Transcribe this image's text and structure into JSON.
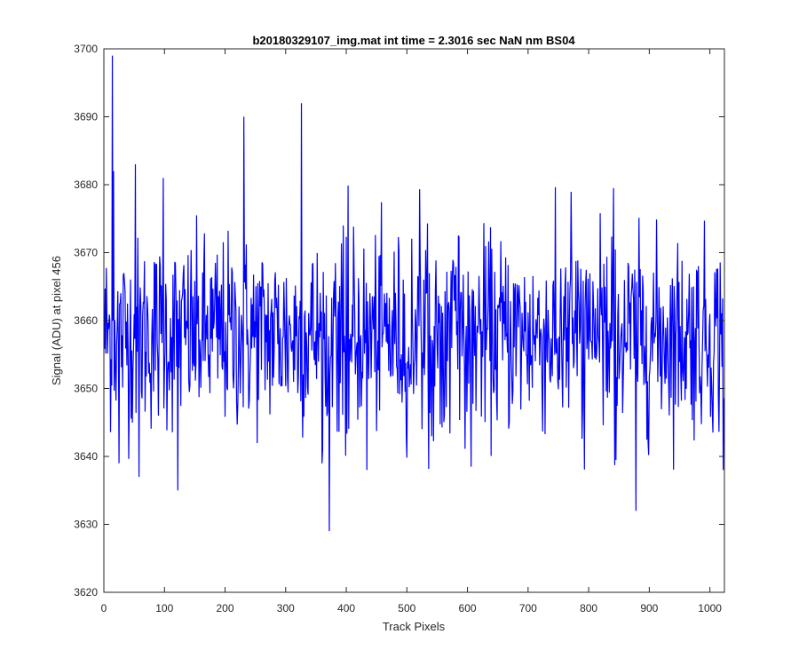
{
  "chart_data": {
    "type": "line",
    "title": "b20180329107_img.mat int time = 2.3016 sec  NaN nm BS04",
    "xlabel": "Track Pixels",
    "ylabel": "Signal (ADU) at pixel 456",
    "xlim": [
      0,
      1024
    ],
    "ylim": [
      3620,
      3700
    ],
    "xticks": [
      0,
      100,
      200,
      300,
      400,
      500,
      600,
      700,
      800,
      900,
      1000
    ],
    "yticks": [
      3620,
      3630,
      3640,
      3650,
      3660,
      3670,
      3680,
      3690,
      3700
    ],
    "grid": false,
    "line_color": "#0000ff",
    "series": [
      {
        "x_start": 1,
        "x_step": 1,
        "baseline": 3658,
        "noise_std": 7,
        "n_points": 1024,
        "notable_points": [
          {
            "x": 14,
            "y": 3699
          },
          {
            "x": 16,
            "y": 3682
          },
          {
            "x": 25,
            "y": 3639
          },
          {
            "x": 52,
            "y": 3683
          },
          {
            "x": 58,
            "y": 3637
          },
          {
            "x": 98,
            "y": 3681
          },
          {
            "x": 122,
            "y": 3635
          },
          {
            "x": 231,
            "y": 3690
          },
          {
            "x": 326,
            "y": 3692
          },
          {
            "x": 372,
            "y": 3629
          },
          {
            "x": 395,
            "y": 3674
          },
          {
            "x": 434,
            "y": 3638
          },
          {
            "x": 878,
            "y": 3632
          },
          {
            "x": 1022,
            "y": 3638
          }
        ]
      }
    ]
  }
}
